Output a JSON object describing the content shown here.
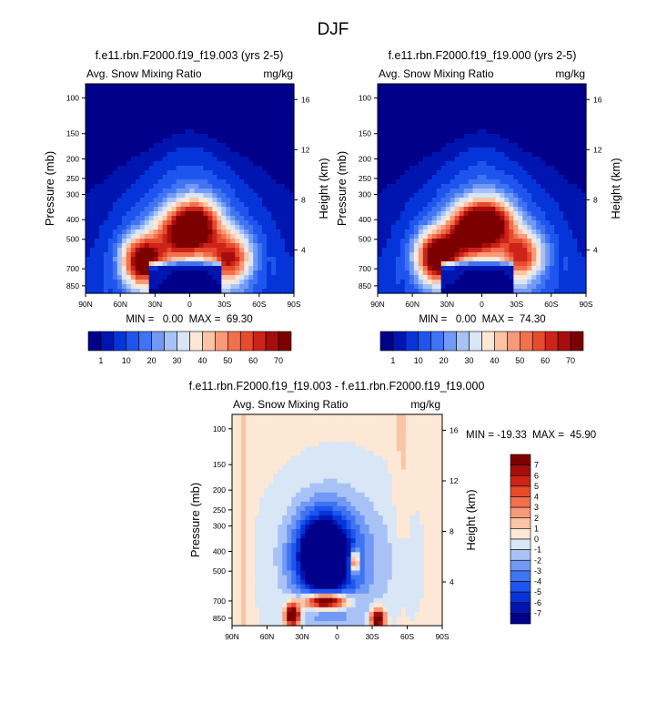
{
  "figure": {
    "title": "DJF"
  },
  "chart_data": [
    {
      "type": "heatmap",
      "title": "f.e11.rbn.F2000.f19_f19.003 (yrs 2-5)",
      "left_label": "Avg. Snow Mixing Ratio",
      "right_label": "mg/kg",
      "xlabel": "",
      "ylabel": "Pressure (mb)",
      "y2label": "Height (km)",
      "x_ticks": [
        "90N",
        "60N",
        "30N",
        "0",
        "30S",
        "60S",
        "90S"
      ],
      "y_ticks": [
        "100",
        "150",
        "200",
        "250",
        "300",
        "400",
        "500",
        "700",
        "850"
      ],
      "y2_ticks": [
        "16",
        "12",
        "8",
        "4"
      ],
      "stats": "MIN =   0.00  MAX =  69.30",
      "min": 0.0,
      "max": 69.3,
      "colorbar_labels": [
        "1",
        "10",
        "20",
        "30",
        "40",
        "50",
        "60",
        "70"
      ],
      "blobs": [
        {
          "lat": -35,
          "p": 620,
          "peak": 50
        },
        {
          "lat": -8,
          "p": 430,
          "peak": 55
        },
        {
          "lat": 10,
          "p": 470,
          "peak": 45
        },
        {
          "lat": 40,
          "p": 640,
          "peak": 69
        }
      ]
    },
    {
      "type": "heatmap",
      "title": "f.e11.rbn.F2000.f19_f19.000 (yrs 2-5)",
      "left_label": "Avg. Snow Mixing Ratio",
      "right_label": "mg/kg",
      "xlabel": "",
      "ylabel": "Pressure (mb)",
      "y2label": "Height (km)",
      "x_ticks": [
        "90N",
        "60N",
        "30N",
        "0",
        "30S",
        "60S",
        "90S"
      ],
      "y_ticks": [
        "100",
        "150",
        "200",
        "250",
        "300",
        "400",
        "500",
        "700",
        "850"
      ],
      "y2_ticks": [
        "16",
        "12",
        "8",
        "4"
      ],
      "stats": "MIN =   0.00  MAX =  74.30",
      "min": 0.0,
      "max": 74.3,
      "colorbar_labels": [
        "1",
        "10",
        "20",
        "30",
        "40",
        "50",
        "60",
        "70"
      ],
      "blobs": [
        {
          "lat": -35,
          "p": 600,
          "peak": 45
        },
        {
          "lat": -10,
          "p": 420,
          "peak": 50
        },
        {
          "lat": 10,
          "p": 450,
          "peak": 62
        },
        {
          "lat": 38,
          "p": 610,
          "peak": 74
        }
      ]
    },
    {
      "type": "heatmap",
      "title": "f.e11.rbn.F2000.f19_f19.003 - f.e11.rbn.F2000.f19_f19.000",
      "left_label": "Avg. Snow Mixing Ratio",
      "right_label": "mg/kg",
      "xlabel": "",
      "ylabel": "Pressure (mb)",
      "y2label": "Height (km)",
      "x_ticks": [
        "90N",
        "60N",
        "30N",
        "0",
        "30S",
        "60S",
        "90S"
      ],
      "y_ticks": [
        "100",
        "150",
        "200",
        "250",
        "300",
        "400",
        "500",
        "700",
        "850"
      ],
      "y2_ticks": [
        "16",
        "12",
        "8",
        "4"
      ],
      "stats": "MIN = -19.33  MAX =  45.90",
      "min": -19.33,
      "max": 45.9,
      "colorbar_labels": [
        "7",
        "6",
        "5",
        "4",
        "3",
        "2",
        "1",
        "0",
        "-1",
        "-2",
        "-3",
        "-4",
        "-5",
        "-6",
        "-7"
      ]
    }
  ],
  "colors": {
    "snow_palette": [
      "#00008a",
      "#0015b0",
      "#0535d8",
      "#1f55ee",
      "#3f74f2",
      "#7199f5",
      "#a8c2f6",
      "#d8e6f5",
      "#fde7d5",
      "#fac4a5",
      "#f79a7a",
      "#f2704e",
      "#e84a2c",
      "#cc2418",
      "#a80d0d",
      "#7d0000"
    ],
    "diff_palette": [
      "#00008a",
      "#0015b0",
      "#0535d8",
      "#1f55ee",
      "#3f74f2",
      "#7199f5",
      "#a8c2f6",
      "#d8e6f5",
      "#fde7d5",
      "#fac4a5",
      "#f79a7a",
      "#f2704e",
      "#e84a2c",
      "#cc2418",
      "#a80d0d",
      "#7d0000"
    ]
  }
}
